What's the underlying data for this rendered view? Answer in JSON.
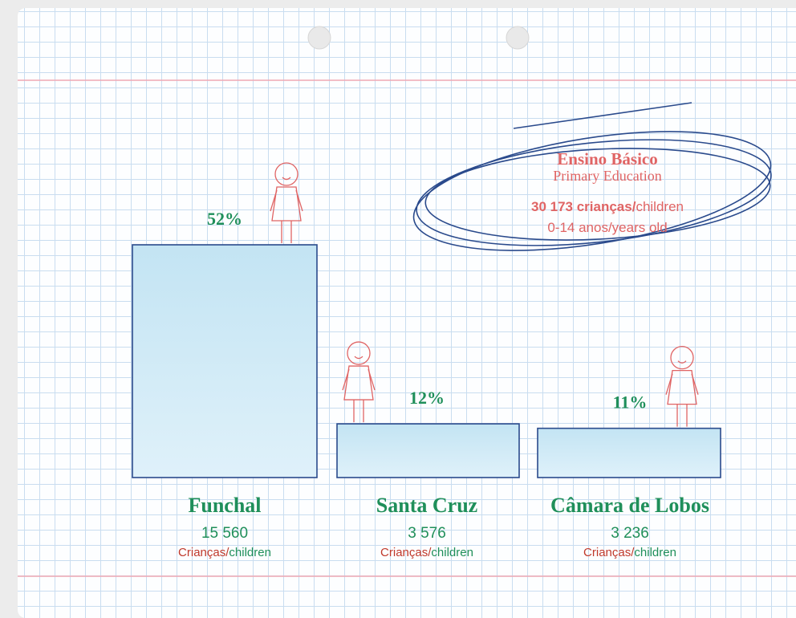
{
  "chart_data": {
    "type": "bar",
    "title": "Ensino Básico",
    "subtitle": "Primary Education",
    "annotations": {
      "total": "30 173 crianças/",
      "total_en": "children",
      "age": "0-14 anos/",
      "age_en": "years old"
    },
    "categories": [
      "Funchal",
      "Santa Cruz",
      "Câmara de Lobos"
    ],
    "values": [
      52,
      12,
      11
    ],
    "value_labels": [
      "52%",
      "12%",
      "11%"
    ],
    "counts": [
      {
        "value": 15560,
        "label": "15 560"
      },
      {
        "value": 3576,
        "label": "3 576"
      },
      {
        "value": 3236,
        "label": "3 236"
      }
    ],
    "unit_label": "Crianças/",
    "unit_label_en": "children",
    "ylim": [
      0,
      52
    ],
    "color": "#c3e4f3"
  }
}
